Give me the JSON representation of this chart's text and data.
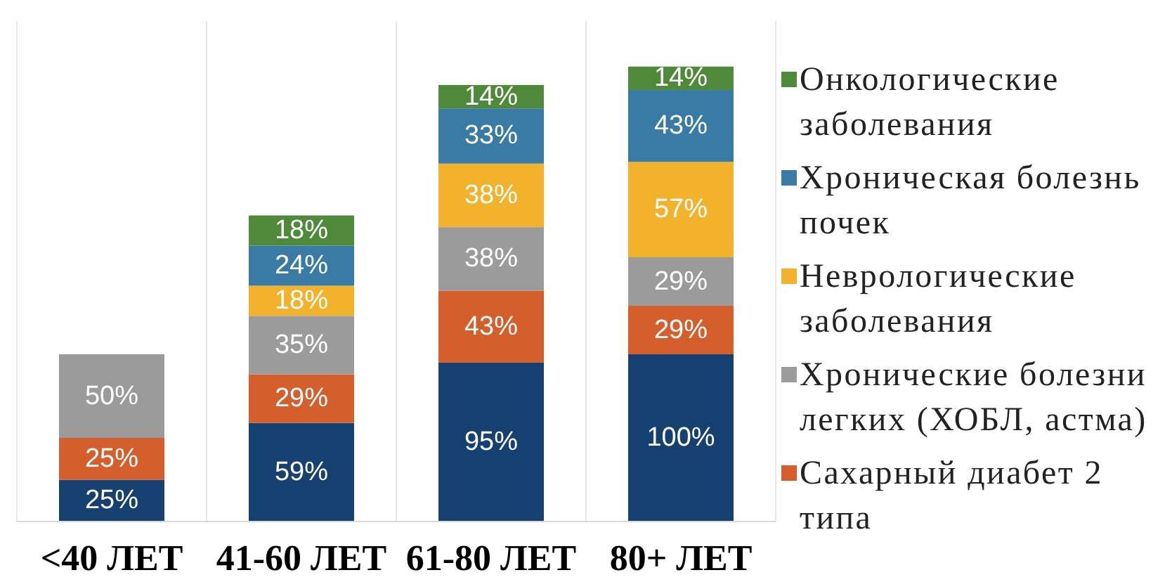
{
  "chart_data": {
    "type": "bar",
    "stacked": true,
    "categories": [
      "<40 ЛЕТ",
      "41-60 ЛЕТ",
      "61-80 ЛЕТ",
      "80+ ЛЕТ"
    ],
    "series": [
      {
        "color": "#16406f",
        "values": [
          25,
          59,
          95,
          100
        ],
        "value_labels": [
          "25%",
          "59%",
          "95%",
          "100%"
        ]
      },
      {
        "name": "Сахарный диабет 2 типа",
        "color": "#d45f2c",
        "values": [
          25,
          29,
          43,
          29
        ],
        "value_labels": [
          "25%",
          "29%",
          "43%",
          "29%"
        ]
      },
      {
        "name": "Хронические болезни легких (ХОБЛ, астма)",
        "color": "#9b9b9b",
        "values": [
          50,
          35,
          38,
          29
        ],
        "value_labels": [
          "50%",
          "35%",
          "38%",
          "29%"
        ]
      },
      {
        "name": "Неврологические заболевания",
        "color": "#f3b22c",
        "values": [
          null,
          18,
          38,
          57
        ],
        "value_labels": [
          null,
          "18%",
          "38%",
          "57%"
        ]
      },
      {
        "name": "Хроническая болезнь почек",
        "color": "#3a7ba6",
        "values": [
          null,
          24,
          33,
          43
        ],
        "value_labels": [
          null,
          "24%",
          "33%",
          "43%"
        ]
      },
      {
        "name": "Онкологические заболевания",
        "color": "#4f8a3a",
        "values": [
          null,
          18,
          14,
          14
        ],
        "value_labels": [
          null,
          "18%",
          "14%",
          "14%"
        ]
      }
    ],
    "grid": "x",
    "legend": "right"
  }
}
